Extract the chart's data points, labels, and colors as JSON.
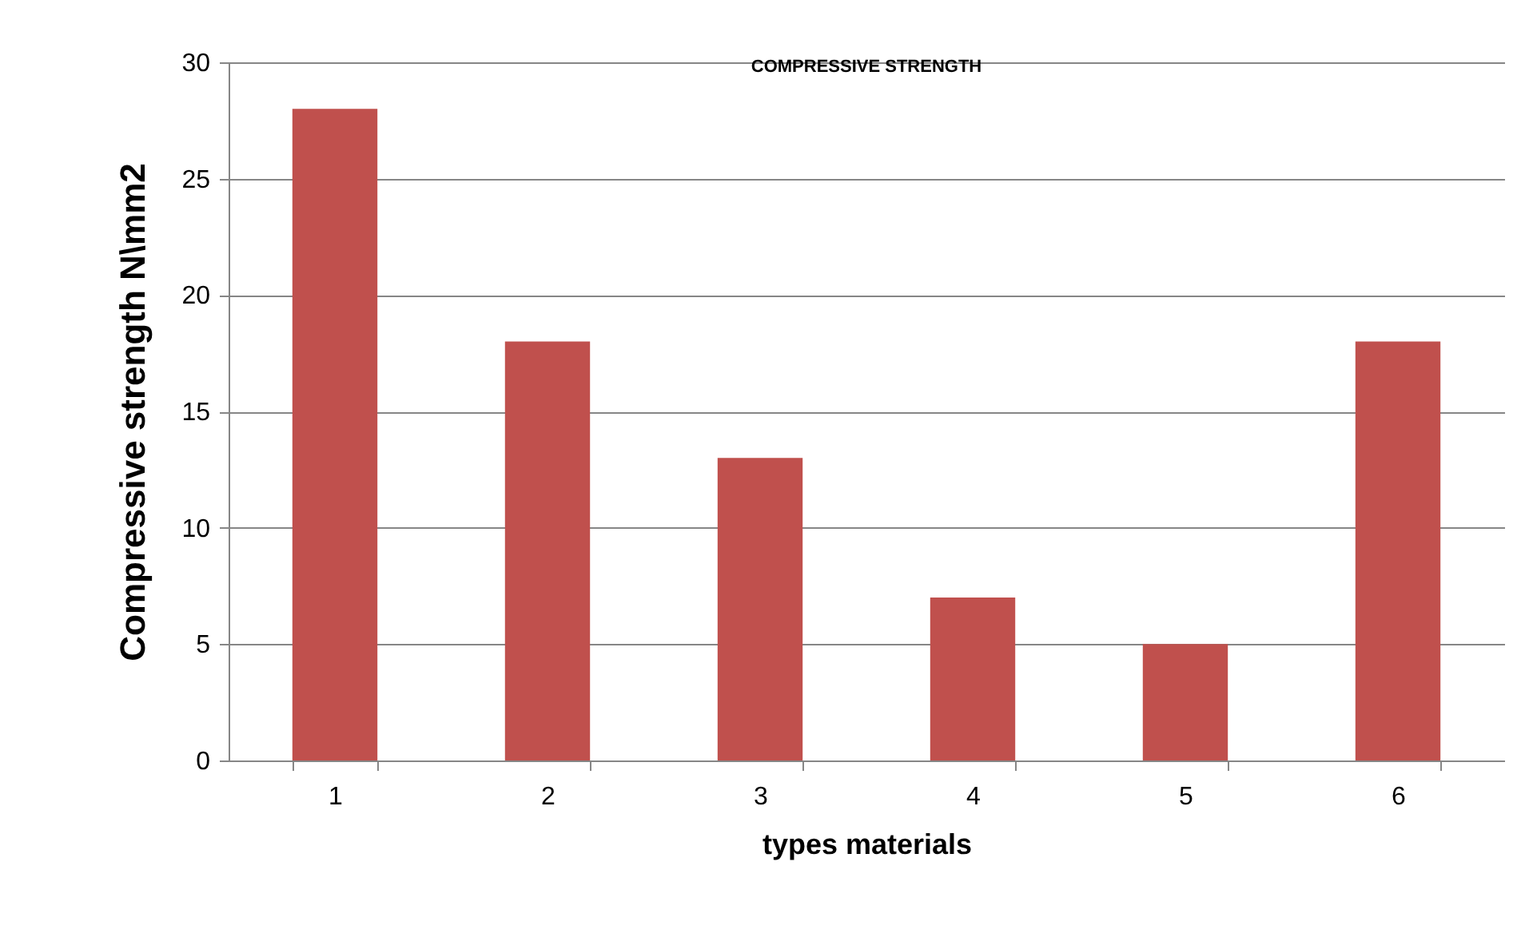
{
  "chart_data": {
    "type": "bar",
    "title": "COMPRESSIVE STRENGTH",
    "xlabel": "types materials",
    "ylabel": "Compressive strength N\\mm2",
    "categories": [
      "1",
      "2",
      "3",
      "4",
      "5",
      "6"
    ],
    "values": [
      28,
      18,
      13,
      7,
      5,
      18
    ],
    "color": "#c0504d",
    "ylim": [
      0,
      30
    ],
    "yticks": [
      0,
      5,
      10,
      15,
      20,
      25,
      30
    ],
    "grid": "y"
  }
}
